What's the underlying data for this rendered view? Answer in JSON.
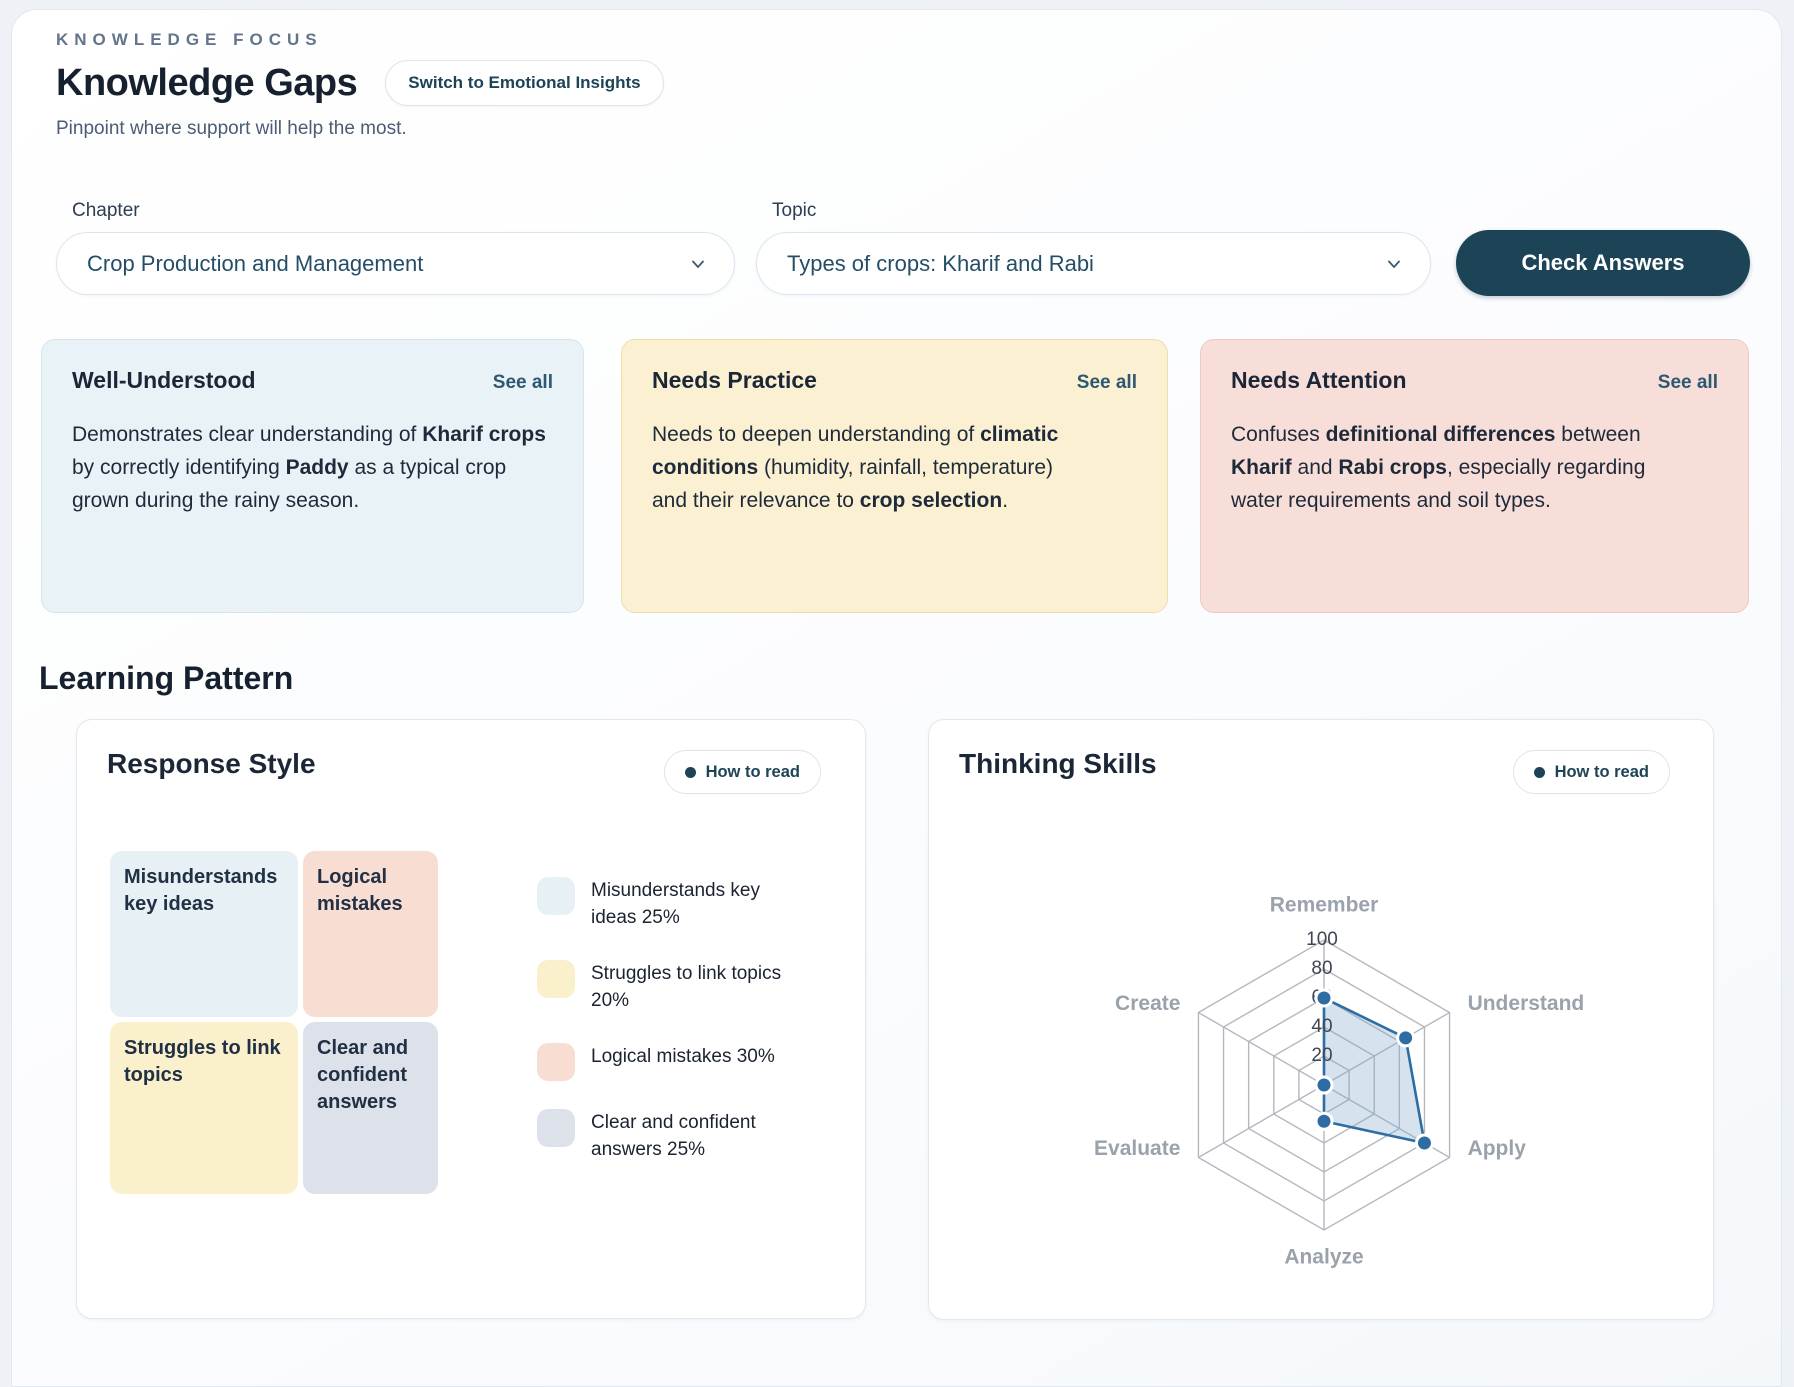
{
  "header": {
    "eyebrow": "KNOWLEDGE FOCUS",
    "title": "Knowledge Gaps",
    "switch_button": "Switch to Emotional Insights",
    "subtitle": "Pinpoint where support will help the most."
  },
  "filters": {
    "chapter_label": "Chapter",
    "chapter_value": "Crop Production and Management",
    "topic_label": "Topic",
    "topic_value": "Types of crops: Kharif and Rabi",
    "check_answers_label": "Check Answers"
  },
  "insight_cards": [
    {
      "title": "Well-Understood",
      "link": "See all",
      "bg": "#e9f3f7",
      "border": "#d3e5ed",
      "segments": [
        {
          "text": "Demonstrates clear understanding of ",
          "bold": false
        },
        {
          "text": "Kharif crops",
          "bold": true
        },
        {
          "text": " by correctly identifying ",
          "bold": false
        },
        {
          "text": "Paddy",
          "bold": true
        },
        {
          "text": " as a typical crop grown during the rainy season.",
          "bold": false
        }
      ]
    },
    {
      "title": "Needs Practice",
      "link": "See all",
      "bg": "#fbf0d2",
      "border": "#eddfab",
      "segments": [
        {
          "text": "Needs to deepen understanding of ",
          "bold": false
        },
        {
          "text": "climatic conditions",
          "bold": true
        },
        {
          "text": " (humidity, rainfall, temperature) and their relevance to ",
          "bold": false
        },
        {
          "text": "crop selection",
          "bold": true
        },
        {
          "text": ".",
          "bold": false
        }
      ]
    },
    {
      "title": "Needs Attention",
      "link": "See all",
      "bg": "#f8ded8",
      "border": "#efcac2",
      "segments": [
        {
          "text": "Confuses ",
          "bold": false
        },
        {
          "text": "definitional differences",
          "bold": true
        },
        {
          "text": " between ",
          "bold": false
        },
        {
          "text": "Kharif",
          "bold": true
        },
        {
          "text": " and ",
          "bold": false
        },
        {
          "text": "Rabi crops",
          "bold": true
        },
        {
          "text": ", especially regarding water requirements and soil types.",
          "bold": false
        }
      ]
    }
  ],
  "learning_pattern": {
    "heading": "Learning Pattern",
    "response_style": {
      "title": "Response Style",
      "how_to_read": "How to read",
      "blocks": [
        {
          "label": "Misunderstands key ideas",
          "color": "#e7f1f5"
        },
        {
          "label": "Logical mistakes",
          "color": "#f8ddd3"
        },
        {
          "label": "Struggles to link topics",
          "color": "#faf0cc"
        },
        {
          "label": "Clear and confident answers",
          "color": "#dde2ea"
        }
      ],
      "legend": [
        {
          "label": "Misunderstands key ideas 25%",
          "color": "#e7f1f5"
        },
        {
          "label": "Struggles to link topics 20%",
          "color": "#faf0cc"
        },
        {
          "label": "Logical mistakes 30%",
          "color": "#f8ddd3"
        },
        {
          "label": "Clear and confident answers 25%",
          "color": "#dde2ea"
        }
      ]
    },
    "thinking_skills": {
      "title": "Thinking Skills",
      "how_to_read": "How to read"
    }
  },
  "colors": {
    "accent_navy": "#1d4356",
    "link_blue": "#2c5871",
    "radar_stroke": "#2e6da3",
    "radar_fill": "#7fa8cc",
    "grid_gray": "#b3b8c0",
    "axis_label_gray": "#9aa2ac"
  },
  "chart_data": [
    {
      "type": "treemap",
      "title": "Response Style",
      "categories": [
        "Misunderstands key ideas",
        "Struggles to link topics",
        "Logical mistakes",
        "Clear and confident answers"
      ],
      "values": [
        25,
        20,
        30,
        25
      ],
      "unit": "%",
      "colors": [
        "#e7f1f5",
        "#faf0cc",
        "#f8ddd3",
        "#dde2ea"
      ],
      "legend_position": "right"
    },
    {
      "type": "radar",
      "title": "Thinking Skills",
      "categories": [
        "Remember",
        "Understand",
        "Apply",
        "Analyze",
        "Evaluate",
        "Create"
      ],
      "values": [
        60,
        65,
        80,
        25,
        0,
        0
      ],
      "rlim": [
        0,
        100
      ],
      "ticks": [
        0,
        20,
        40,
        60,
        80,
        100
      ],
      "grid": "hexagon",
      "legend": "none"
    }
  ]
}
